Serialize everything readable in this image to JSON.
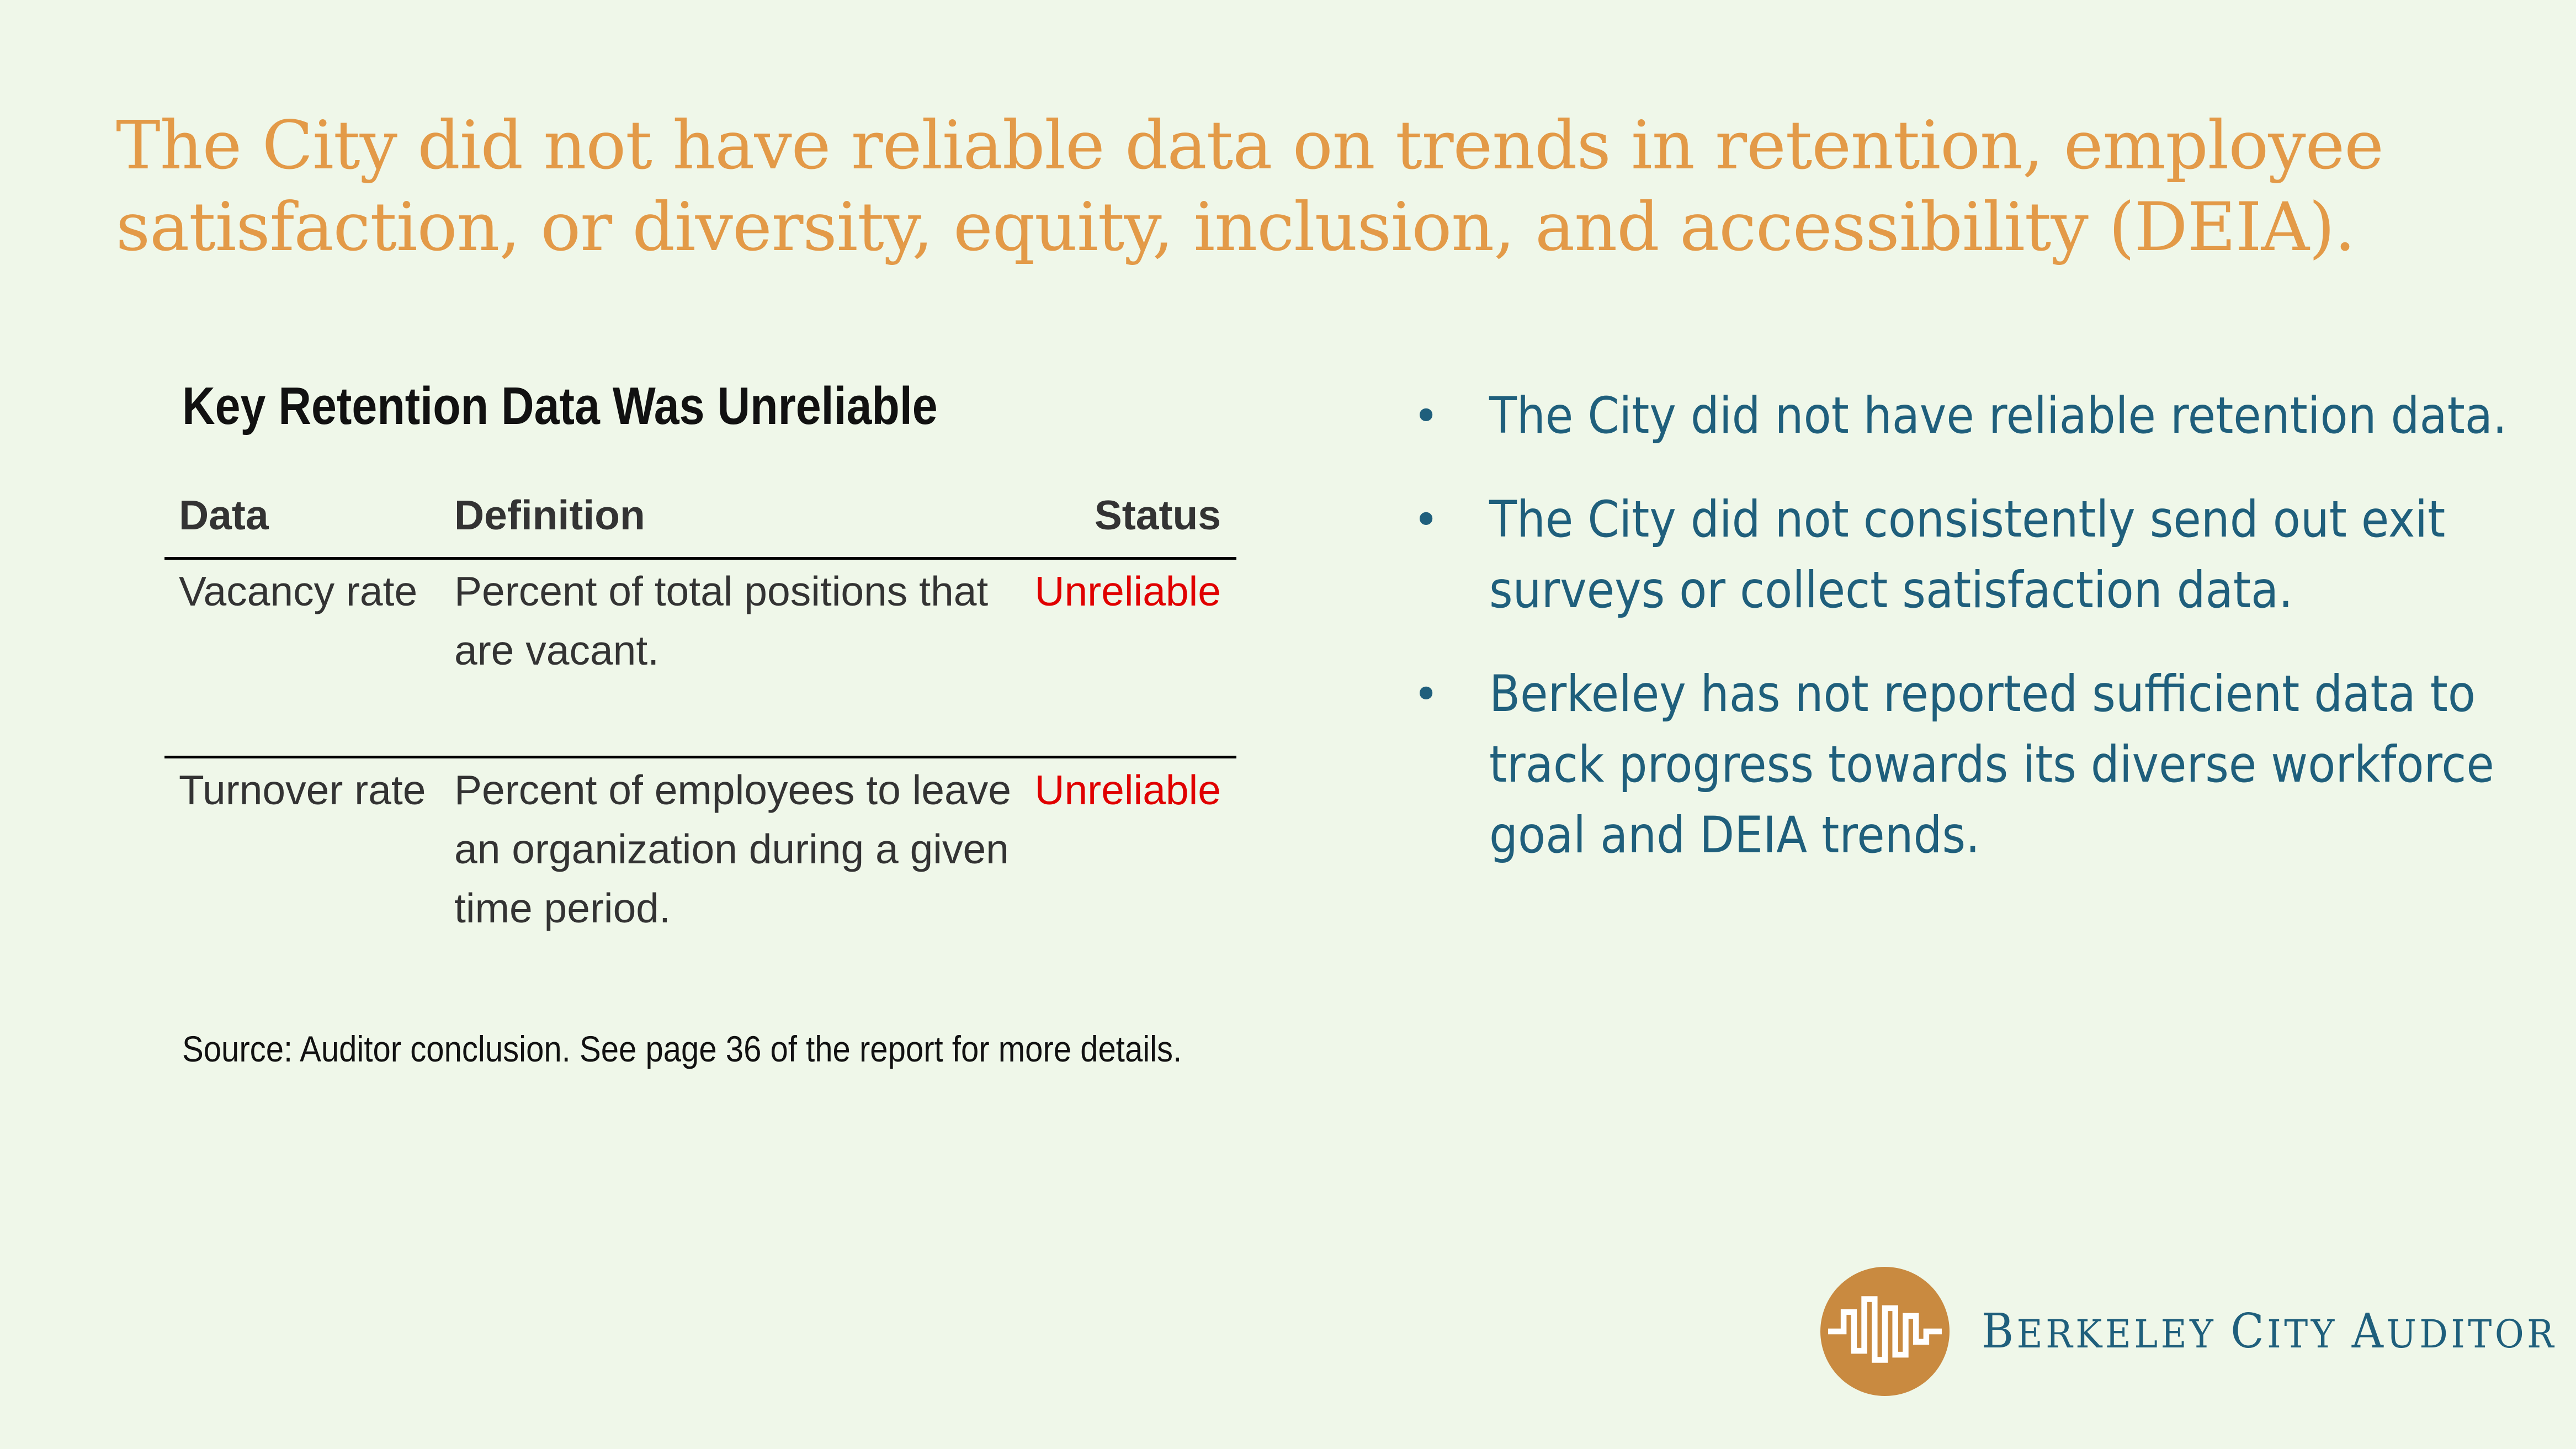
{
  "headline": "The City did not have reliable data on trends in retention, employee satisfaction, or diversity, equity, inclusion, and accessibility (DEIA).",
  "table": {
    "title": "Key Retention Data Was Unreliable",
    "columns": {
      "data": "Data",
      "definition": "Definition",
      "status": "Status"
    },
    "rows": [
      {
        "data": "Vacancy rate",
        "definition": "Percent of total positions that are vacant.",
        "status": "Unreliable"
      },
      {
        "data": "Turnover rate",
        "definition": "Percent of employees to leave an organization during a given time period.",
        "status": "Unreliable"
      }
    ],
    "source": "Source: Auditor conclusion. See page 36 of the report for more details."
  },
  "bullets": [
    "The City did not have reliable retention data.",
    "The City did not consistently send out exit surveys or collect satisfaction data.",
    "Berkeley has not reported sufficient data to track progress towards its diverse workforce goal and DEIA trends."
  ],
  "bullet_glyph": "•",
  "logo": {
    "text": "Berkeley City Auditor",
    "word1_initial": "B",
    "word1_rest": "ERKELEY",
    "word2_initial": "C",
    "word2_rest": "ITY",
    "word3_initial": "A",
    "word3_rest": "UDITOR",
    "icon": "waveform-circle-icon",
    "color": "#c98a40"
  },
  "colors": {
    "background": "#eff7e9",
    "headline": "#e39a48",
    "bullets": "#1f5f7c",
    "status_unreliable": "#e00000"
  }
}
